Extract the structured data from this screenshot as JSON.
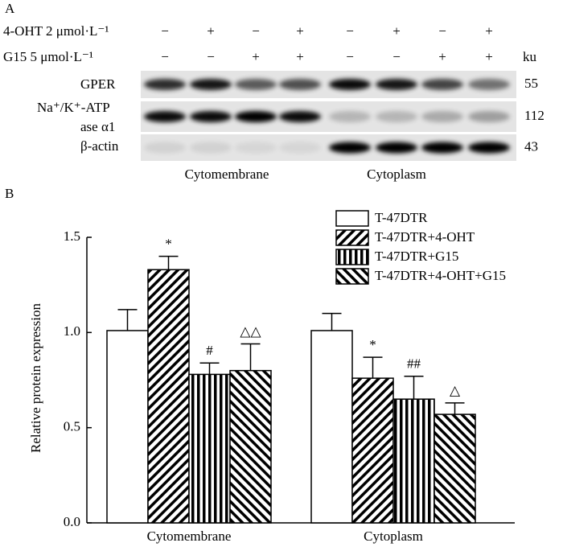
{
  "blot": {
    "panel_label": "A",
    "treatments": [
      {
        "label": "4-OHT 2 μmol·L⁻¹",
        "signs": [
          "−",
          "+",
          "−",
          "+",
          "−",
          "+",
          "−",
          "+"
        ]
      },
      {
        "label": "G15 5 μmol·L⁻¹",
        "signs": [
          "−",
          "−",
          "+",
          "+",
          "−",
          "−",
          "+",
          "+"
        ]
      }
    ],
    "unit": "ku",
    "rows": [
      {
        "label": "GPER",
        "mw": "55"
      },
      {
        "label": "Na⁺/K⁺-ATP ase α1",
        "mw": "112"
      },
      {
        "label": "β-actin",
        "mw": "43"
      }
    ],
    "groups": [
      "Cytomembrane",
      "Cytoplasm"
    ]
  },
  "chart_data": {
    "type": "bar",
    "panel_label": "B",
    "ylabel": "Relative protein expression",
    "categories": [
      "Cytomembrane",
      "Cytoplasm"
    ],
    "series": [
      {
        "name": "T-47DTR",
        "color": "#000000",
        "pattern": "none",
        "values": [
          1.01,
          1.01
        ],
        "errors": [
          0.11,
          0.09
        ]
      },
      {
        "name": "T-47DTR+4-OHT",
        "color": "#000000",
        "pattern": "diagonal",
        "values": [
          1.33,
          0.76
        ],
        "errors": [
          0.07,
          0.11
        ],
        "annotations": [
          "*",
          "*"
        ]
      },
      {
        "name": "T-47DTR+G15",
        "color": "#000000",
        "pattern": "vertical",
        "values": [
          0.78,
          0.65
        ],
        "errors": [
          0.06,
          0.12
        ],
        "annotations": [
          "#",
          "##"
        ]
      },
      {
        "name": "T-47DTR+4-OHT+G15",
        "color": "#000000",
        "pattern": "backdiagonal",
        "values": [
          0.8,
          0.57
        ],
        "errors": [
          0.14,
          0.06
        ],
        "annotations": [
          "△△",
          "△"
        ]
      }
    ],
    "ylim": [
      0,
      1.5
    ],
    "yticks": [
      {
        "value": 0,
        "label": "0.0"
      },
      0.5,
      {
        "value": 1,
        "label": "1.0"
      },
      1.5
    ],
    "legend": "top-right"
  }
}
